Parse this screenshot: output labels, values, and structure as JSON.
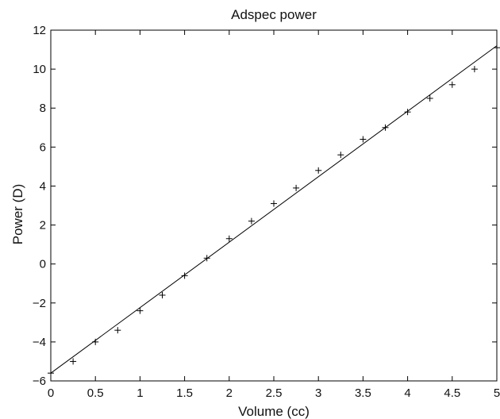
{
  "chart_data": {
    "type": "scatter",
    "title": "Adspec power",
    "xlabel": "Volume (cc)",
    "ylabel": "Power (D)",
    "xlim": [
      0,
      5
    ],
    "ylim": [
      -6,
      12
    ],
    "grid": false,
    "x_ticks": [
      "0",
      "0.5",
      "1",
      "1.5",
      "2",
      "2.5",
      "3",
      "3.5",
      "4",
      "4.5",
      "5"
    ],
    "y_ticks": [
      "−6",
      "−4",
      "−2",
      "0",
      "2",
      "4",
      "6",
      "8",
      "10",
      "12"
    ],
    "series": [
      {
        "marker": "+",
        "color": "#000000",
        "x": [
          0,
          0.25,
          0.5,
          0.75,
          1.0,
          1.25,
          1.5,
          1.75,
          2.0,
          2.25,
          2.5,
          2.75,
          3.0,
          3.25,
          3.5,
          3.75,
          4.0,
          4.25,
          4.5,
          4.75,
          5.0
        ],
        "y": [
          -5.6,
          -5.0,
          -4.0,
          -3.4,
          -2.4,
          -1.6,
          -0.6,
          0.3,
          1.3,
          2.2,
          3.1,
          3.9,
          4.8,
          5.6,
          6.4,
          7.0,
          7.8,
          8.5,
          9.2,
          10.0,
          11.1
        ]
      }
    ],
    "fit_line": {
      "x": [
        0,
        5
      ],
      "y": [
        -5.6,
        11.2
      ],
      "color": "#000000"
    }
  }
}
